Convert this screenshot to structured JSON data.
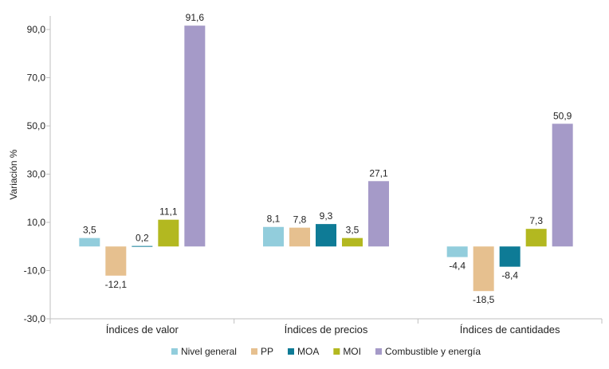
{
  "chart_data": {
    "type": "bar",
    "title": "",
    "xlabel": "",
    "ylabel": "Variación %",
    "ylim": [
      -30,
      100
    ],
    "yticks": [
      "90,0",
      "70,0",
      "50,0",
      "30,0",
      "10,0",
      "-10,0",
      "-30,0"
    ],
    "ytick_values": [
      90,
      70,
      50,
      30,
      10,
      -10,
      -30
    ],
    "grid": false,
    "legend_position": "bottom",
    "categories": [
      "Índices de valor",
      "Índices de precios",
      "Índices de cantidades"
    ],
    "series": [
      {
        "name": "Nivel general",
        "color": "#92CDDC",
        "values": [
          3.5,
          8.1,
          -4.4
        ],
        "labels": [
          "3,5",
          "8,1",
          "-4,4"
        ]
      },
      {
        "name": "PP",
        "color": "#E6C08F",
        "values": [
          -12.1,
          7.8,
          -18.5
        ],
        "labels": [
          "-12,1",
          "7,8",
          "-18,5"
        ]
      },
      {
        "name": "MOA",
        "color": "#0E7B96",
        "values": [
          0.2,
          9.3,
          -8.4
        ],
        "labels": [
          "0,2",
          "9,3",
          "-8,4"
        ]
      },
      {
        "name": "MOI",
        "color": "#B3B820",
        "values": [
          11.1,
          3.5,
          7.3
        ],
        "labels": [
          "11,1",
          "3,5",
          "7,3"
        ]
      },
      {
        "name": "Combustible y energía",
        "color": "#A59AC8",
        "values": [
          91.6,
          27.1,
          50.9
        ],
        "labels": [
          "91,6",
          "27,1",
          "50,9"
        ]
      }
    ]
  }
}
